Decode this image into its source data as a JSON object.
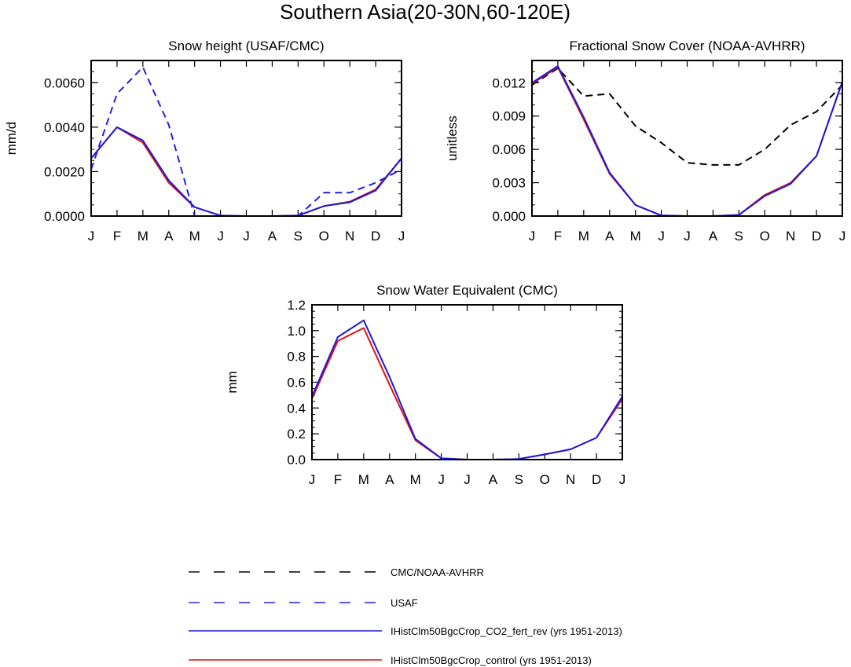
{
  "figure": {
    "title": "Southern Asia(20-30N,60-120E)"
  },
  "months": [
    "J",
    "F",
    "M",
    "A",
    "M",
    "J",
    "J",
    "A",
    "S",
    "O",
    "N",
    "D",
    "J"
  ],
  "legend": [
    {
      "label": "CMC/NOAA-AVHRR",
      "color": "#000000",
      "dash": true
    },
    {
      "label": "USAF",
      "color": "#1f1fe0",
      "dash": true
    },
    {
      "label": "IHistClm50BgcCrop_CO2_fert_rev (yrs 1951-2013)",
      "color": "#1a1add",
      "dash": false
    },
    {
      "label": "IHistClm50BgcCrop_control (yrs 1951-2013)",
      "color": "#e01010",
      "dash": false
    }
  ],
  "chart_data": [
    {
      "type": "line",
      "title": "Snow height (USAF/CMC)",
      "ylabel": "mm/d",
      "ylim": [
        0,
        0.007
      ],
      "yticks": [
        0,
        0.002,
        0.004,
        0.006
      ],
      "ytick_labels": [
        "0.0000",
        "0.0020",
        "0.0040",
        "0.0060"
      ],
      "yminor": 0.0005,
      "x": [
        "J",
        "F",
        "M",
        "A",
        "M",
        "J",
        "J",
        "A",
        "S",
        "O",
        "N",
        "D",
        "J"
      ],
      "series": [
        {
          "name": "USAF",
          "color": "#1f1fe0",
          "dash": true,
          "values": [
            0.0021,
            0.0055,
            0.0067,
            0.0041,
            0.0,
            0.0,
            0.0,
            0.0,
            0.0,
            0.00105,
            0.00105,
            0.0015,
            0.0021
          ]
        },
        {
          "name": "IHistClm50BgcCrop_control (yrs 1951-2013)",
          "color": "#e01010",
          "dash": false,
          "values": [
            0.0026,
            0.004,
            0.0033,
            0.0015,
            0.0004,
            2e-05,
            0.0,
            0.0,
            2e-05,
            0.00045,
            0.00065,
            0.0012,
            0.0026
          ]
        },
        {
          "name": "IHistClm50BgcCrop_CO2_fert_rev (yrs 1951-2013)",
          "color": "#1a1add",
          "dash": false,
          "values": [
            0.0026,
            0.004,
            0.0034,
            0.0016,
            0.0004,
            2e-05,
            0.0,
            0.0,
            2e-05,
            0.00045,
            0.00062,
            0.00115,
            0.0026
          ]
        }
      ]
    },
    {
      "type": "line",
      "title": "Fractional Snow Cover (NOAA-AVHRR)",
      "ylabel": "unitless",
      "ylim": [
        0,
        0.014
      ],
      "yticks": [
        0,
        0.003,
        0.006,
        0.009,
        0.012
      ],
      "ytick_labels": [
        "0.000",
        "0.003",
        "0.006",
        "0.009",
        "0.012"
      ],
      "yminor": 0.001,
      "x": [
        "J",
        "F",
        "M",
        "A",
        "M",
        "J",
        "J",
        "A",
        "S",
        "O",
        "N",
        "D",
        "J"
      ],
      "series": [
        {
          "name": "CMC/NOAA-AVHRR",
          "color": "#000000",
          "dash": true,
          "values": [
            0.0118,
            0.0133,
            0.0108,
            0.011,
            0.0081,
            0.0066,
            0.0048,
            0.0046,
            0.0046,
            0.006,
            0.0082,
            0.0094,
            0.0118
          ]
        },
        {
          "name": "IHistClm50BgcCrop_control (yrs 1951-2013)",
          "color": "#e01010",
          "dash": false,
          "values": [
            0.0119,
            0.0134,
            0.0087,
            0.0038,
            0.001,
            5e-05,
            0.0,
            0.0,
            0.0001,
            0.0019,
            0.003,
            0.0054,
            0.0121
          ]
        },
        {
          "name": "IHistClm50BgcCrop_CO2_fert_rev (yrs 1951-2013)",
          "color": "#1a1add",
          "dash": false,
          "values": [
            0.012,
            0.0135,
            0.0089,
            0.0039,
            0.001,
            5e-05,
            0.0,
            0.0,
            0.0001,
            0.0018,
            0.0029,
            0.0054,
            0.0121
          ]
        }
      ]
    },
    {
      "type": "line",
      "title": "Snow Water Equivalent (CMC)",
      "ylabel": "mm",
      "ylim": [
        0,
        1.2
      ],
      "yticks": [
        0,
        0.2,
        0.4,
        0.6,
        0.8,
        1.0,
        1.2
      ],
      "ytick_labels": [
        "0.0",
        "0.2",
        "0.4",
        "0.6",
        "0.8",
        "1.0",
        "1.2"
      ],
      "yminor": 0.05,
      "x": [
        "J",
        "F",
        "M",
        "A",
        "M",
        "J",
        "J",
        "A",
        "S",
        "O",
        "N",
        "D",
        "J"
      ],
      "series": [
        {
          "name": "IHistClm50BgcCrop_control (yrs 1951-2013)",
          "color": "#e01010",
          "dash": false,
          "values": [
            0.47,
            0.92,
            1.02,
            0.58,
            0.15,
            0.01,
            0.0,
            0.0,
            0.005,
            0.04,
            0.08,
            0.17,
            0.47
          ]
        },
        {
          "name": "IHistClm50BgcCrop_CO2_fert_rev (yrs 1951-2013)",
          "color": "#1a1add",
          "dash": false,
          "values": [
            0.49,
            0.95,
            1.08,
            0.64,
            0.16,
            0.01,
            0.0,
            0.0,
            0.005,
            0.04,
            0.08,
            0.17,
            0.49
          ]
        }
      ]
    }
  ]
}
